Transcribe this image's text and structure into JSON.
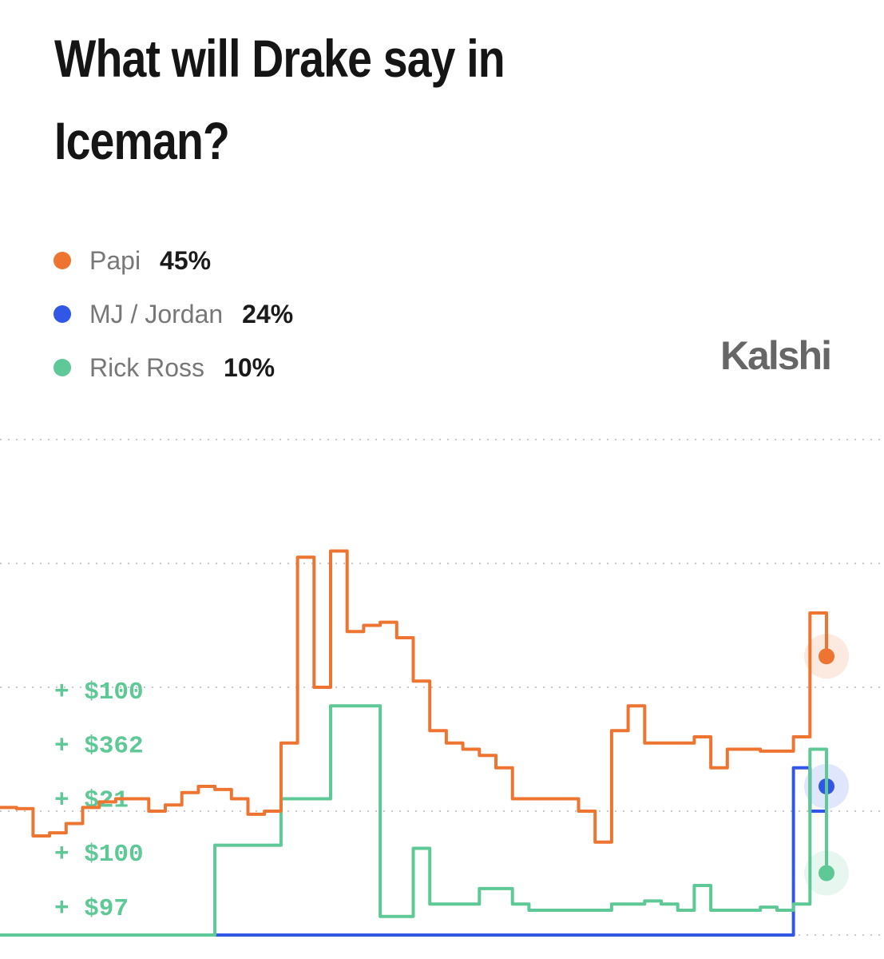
{
  "chart_data": {
    "type": "line",
    "title": "What will Drake say in Iceman?",
    "brand": "Kalshi",
    "ylim": [
      0,
      80
    ],
    "gridlines": [
      0,
      20,
      40,
      60,
      80
    ],
    "series": [
      {
        "name": "Papi",
        "color": "#ee7531",
        "current": 45,
        "current_label": "45%",
        "values": [
          20.6,
          20.4,
          16,
          16.5,
          18,
          20.6,
          21.5,
          22,
          22,
          20,
          21,
          23,
          24,
          23.5,
          22,
          19.5,
          20,
          31,
          61,
          40,
          62,
          49,
          50,
          50.5,
          48,
          41,
          33,
          31,
          30,
          29,
          27,
          22,
          22,
          22,
          22,
          20,
          15,
          33,
          37,
          31,
          31,
          31,
          32,
          27,
          30,
          30,
          29.7,
          29.7,
          32,
          52,
          45
        ]
      },
      {
        "name": "MJ / Jordan",
        "color": "#3157e6",
        "current": 24,
        "current_label": "24%",
        "values": [
          0,
          0,
          0,
          0,
          0,
          0,
          0,
          0,
          0,
          0,
          0,
          0,
          0,
          0,
          0,
          0,
          0,
          0,
          0,
          0,
          0,
          0,
          0,
          0,
          0,
          0,
          0,
          0,
          0,
          0,
          0,
          0,
          0,
          0,
          0,
          0,
          0,
          0,
          0,
          0,
          0,
          0,
          0,
          0,
          0,
          0,
          0,
          0,
          27,
          20,
          24
        ]
      },
      {
        "name": "Rick Ross",
        "color": "#5ec896",
        "current": 10,
        "current_label": "10%",
        "values": [
          0,
          0,
          0,
          0,
          0,
          0,
          0,
          0,
          0,
          0,
          0,
          0,
          0,
          14.5,
          14.5,
          14.5,
          14.5,
          22,
          22,
          22,
          37,
          37,
          37,
          3,
          3,
          14,
          5,
          5,
          5,
          7.5,
          7.5,
          5,
          4,
          4,
          4,
          4,
          4,
          5,
          5,
          5.5,
          5,
          4,
          8,
          4,
          4,
          4,
          4.5,
          4,
          5,
          30,
          10
        ]
      }
    ],
    "trade_labels": [
      "+ $100",
      "+ $362",
      "+ $21",
      "+ $100",
      "+ $97"
    ]
  }
}
